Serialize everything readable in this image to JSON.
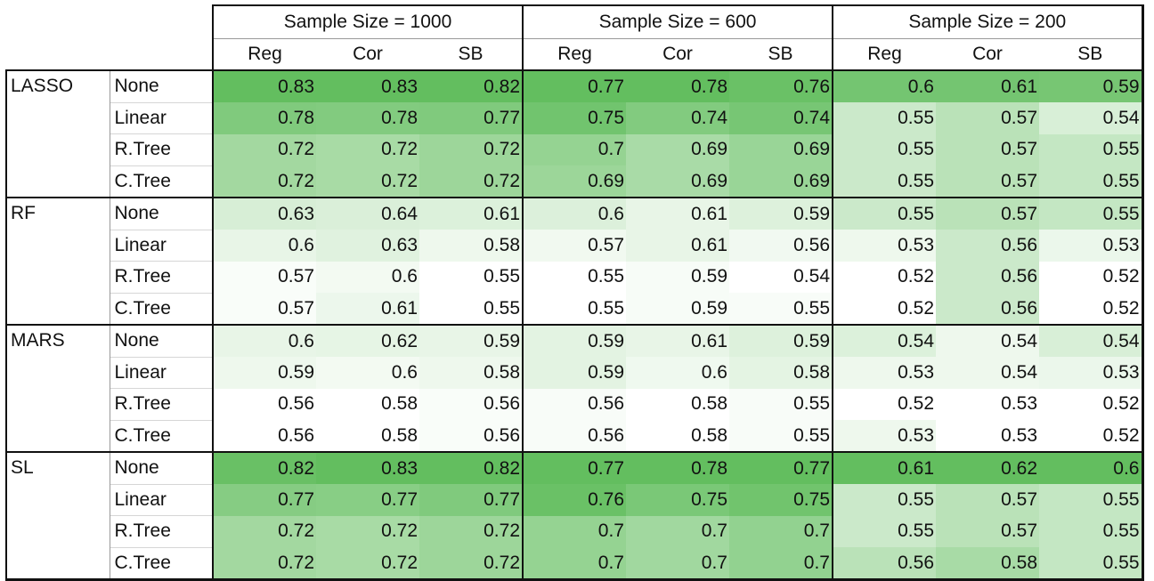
{
  "groups": [
    "Sample Size = 1000",
    "Sample Size = 600",
    "Sample Size = 200"
  ],
  "sub_headers": [
    "Reg",
    "Cor",
    "SB"
  ],
  "blocks": [
    {
      "model": "LASSO",
      "rows": [
        {
          "scenario": "None",
          "values": [
            "0.83",
            "0.83",
            "0.82",
            "0.77",
            "0.78",
            "0.76",
            "0.6",
            "0.61",
            "0.59"
          ]
        },
        {
          "scenario": "Linear",
          "values": [
            "0.78",
            "0.78",
            "0.77",
            "0.75",
            "0.74",
            "0.74",
            "0.55",
            "0.57",
            "0.54"
          ]
        },
        {
          "scenario": "R.Tree",
          "values": [
            "0.72",
            "0.72",
            "0.72",
            "0.7",
            "0.69",
            "0.69",
            "0.55",
            "0.57",
            "0.55"
          ]
        },
        {
          "scenario": "C.Tree",
          "values": [
            "0.72",
            "0.72",
            "0.72",
            "0.69",
            "0.69",
            "0.69",
            "0.55",
            "0.57",
            "0.55"
          ]
        }
      ]
    },
    {
      "model": "RF",
      "rows": [
        {
          "scenario": "None",
          "values": [
            "0.63",
            "0.64",
            "0.61",
            "0.6",
            "0.61",
            "0.59",
            "0.55",
            "0.57",
            "0.55"
          ]
        },
        {
          "scenario": "Linear",
          "values": [
            "0.6",
            "0.63",
            "0.58",
            "0.57",
            "0.61",
            "0.56",
            "0.53",
            "0.56",
            "0.53"
          ]
        },
        {
          "scenario": "R.Tree",
          "values": [
            "0.57",
            "0.6",
            "0.55",
            "0.55",
            "0.59",
            "0.54",
            "0.52",
            "0.56",
            "0.52"
          ]
        },
        {
          "scenario": "C.Tree",
          "values": [
            "0.57",
            "0.61",
            "0.55",
            "0.55",
            "0.59",
            "0.55",
            "0.52",
            "0.56",
            "0.52"
          ]
        }
      ]
    },
    {
      "model": "MARS",
      "rows": [
        {
          "scenario": "None",
          "values": [
            "0.6",
            "0.62",
            "0.59",
            "0.59",
            "0.61",
            "0.59",
            "0.54",
            "0.54",
            "0.54"
          ]
        },
        {
          "scenario": "Linear",
          "values": [
            "0.59",
            "0.6",
            "0.58",
            "0.59",
            "0.6",
            "0.58",
            "0.53",
            "0.54",
            "0.53"
          ]
        },
        {
          "scenario": "R.Tree",
          "values": [
            "0.56",
            "0.58",
            "0.56",
            "0.56",
            "0.58",
            "0.55",
            "0.52",
            "0.53",
            "0.52"
          ]
        },
        {
          "scenario": "C.Tree",
          "values": [
            "0.56",
            "0.58",
            "0.56",
            "0.56",
            "0.58",
            "0.55",
            "0.53",
            "0.53",
            "0.52"
          ]
        }
      ]
    },
    {
      "model": "SL",
      "rows": [
        {
          "scenario": "None",
          "values": [
            "0.82",
            "0.83",
            "0.82",
            "0.77",
            "0.78",
            "0.77",
            "0.61",
            "0.62",
            "0.6"
          ]
        },
        {
          "scenario": "Linear",
          "values": [
            "0.77",
            "0.77",
            "0.77",
            "0.76",
            "0.75",
            "0.75",
            "0.55",
            "0.57",
            "0.55"
          ]
        },
        {
          "scenario": "R.Tree",
          "values": [
            "0.72",
            "0.72",
            "0.72",
            "0.7",
            "0.7",
            "0.7",
            "0.55",
            "0.57",
            "0.55"
          ]
        },
        {
          "scenario": "C.Tree",
          "values": [
            "0.72",
            "0.72",
            "0.72",
            "0.7",
            "0.7",
            "0.7",
            "0.56",
            "0.58",
            "0.55"
          ]
        }
      ]
    }
  ],
  "colors": {
    "scale_low": "#ffffff",
    "scale_high": "#63be5f",
    "border": "#111111"
  }
}
